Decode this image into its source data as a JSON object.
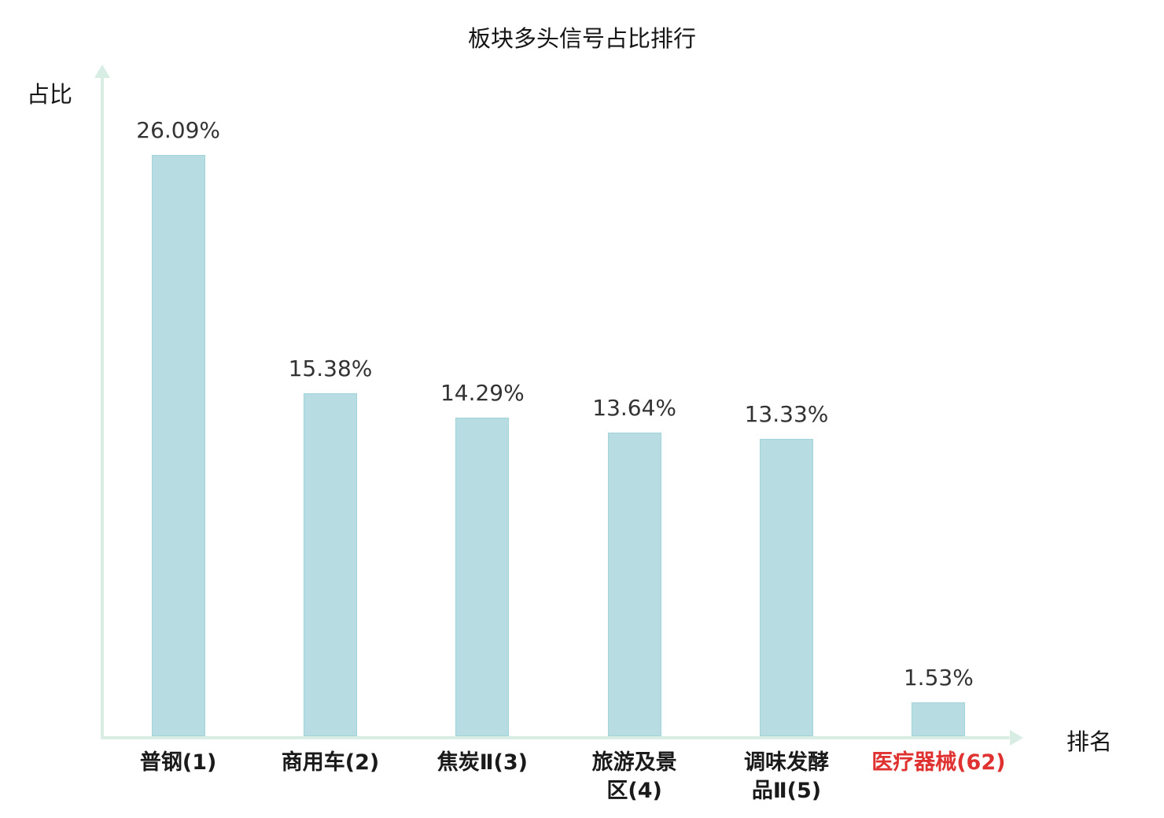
{
  "chart_data": {
    "type": "bar",
    "title": "板块多头信号占比排行",
    "xlabel": "排名",
    "ylabel": "占比",
    "categories": [
      "普钢(1)",
      "商用车(2)",
      "焦炭Ⅱ(3)",
      "旅游及景区(4)",
      "调味发酵品Ⅱ(5)",
      "医疗器械(62)"
    ],
    "category_display": [
      "普钢(1)",
      "商用车(2)",
      "焦炭Ⅱ(3)",
      "旅游及景\n区(4)",
      "调味发酵\n品Ⅱ(5)",
      "医疗器械(62)"
    ],
    "values": [
      26.09,
      15.38,
      14.29,
      13.64,
      13.33,
      1.53
    ],
    "value_labels": [
      "26.09%",
      "15.38%",
      "14.29%",
      "13.64%",
      "13.33%",
      "1.53%"
    ],
    "ranks": [
      1,
      2,
      3,
      4,
      5,
      62
    ],
    "highlight_index": 5,
    "ylim": [
      0,
      30
    ],
    "grid": false,
    "legend_position": "none",
    "colors": {
      "bar_fill": "#b7dde2",
      "bar_border": "#a2d3d9",
      "axis": "#d8eee5",
      "title_text": "#151515",
      "value_text": "#333333",
      "category_text": "#1a1a1a",
      "highlight_text": "#e03131"
    }
  }
}
